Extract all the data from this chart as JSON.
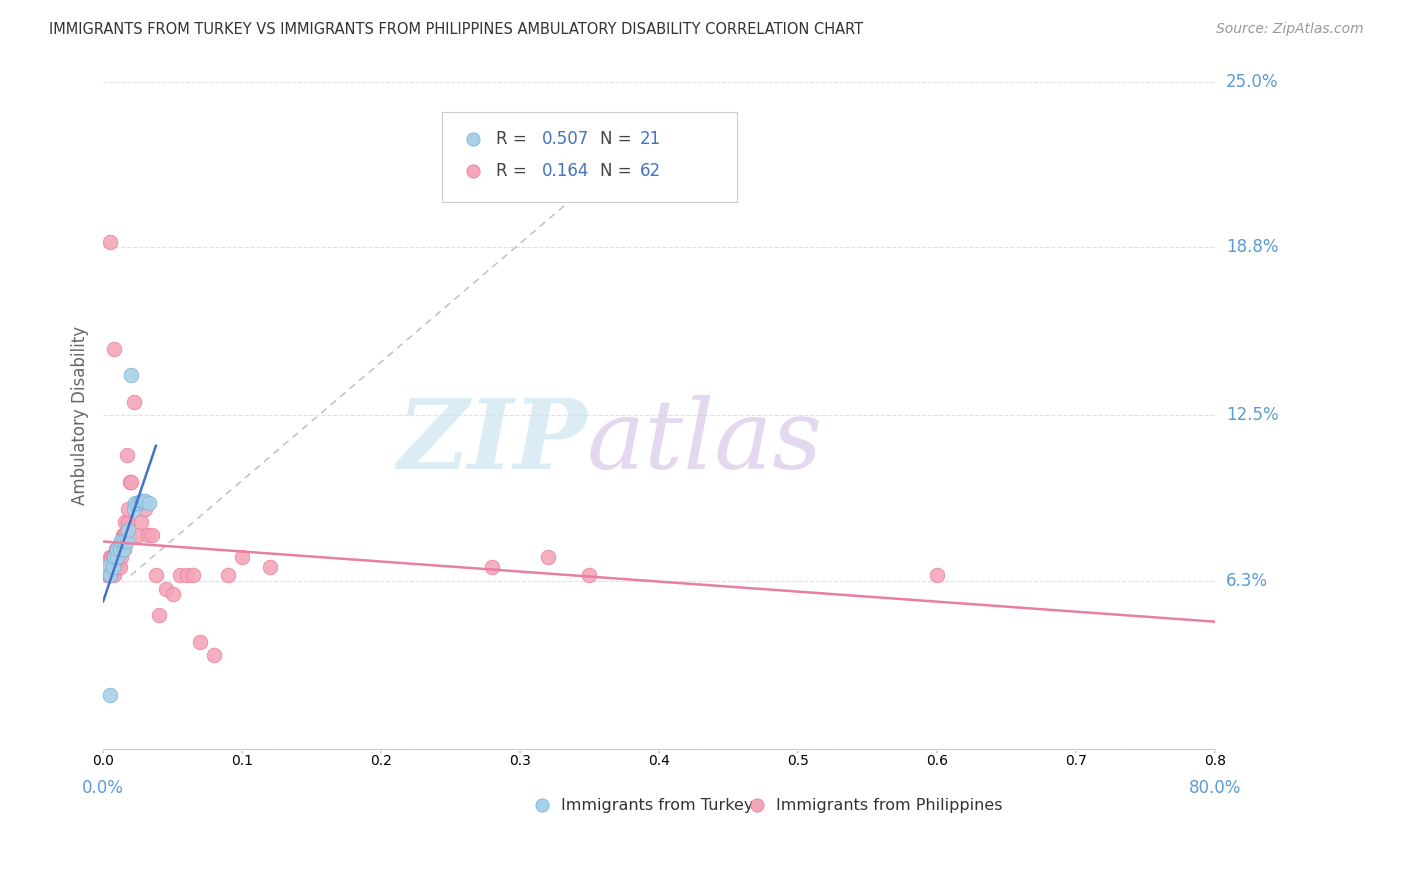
{
  "title": "IMMIGRANTS FROM TURKEY VS IMMIGRANTS FROM PHILIPPINES AMBULATORY DISABILITY CORRELATION CHART",
  "source": "Source: ZipAtlas.com",
  "ylabel": "Ambulatory Disability",
  "xlim": [
    0.0,
    0.8
  ],
  "ylim": [
    0.0,
    0.25
  ],
  "yticks": [
    0.0,
    0.063,
    0.125,
    0.188,
    0.25
  ],
  "ytick_labels": [
    "",
    "6.3%",
    "12.5%",
    "18.8%",
    "25.0%"
  ],
  "xtick_labels": [
    "0.0%",
    "80.0%"
  ],
  "xtick_pos": [
    0.0,
    0.8
  ],
  "turkey_color": "#a8d0e8",
  "turkey_edge": "#7ab5d8",
  "philippines_color": "#f4a6b8",
  "philippines_edge": "#e87f9e",
  "turkey_R": 0.507,
  "turkey_N": 21,
  "philippines_R": 0.164,
  "philippines_N": 62,
  "legend_color_R": "#4472c4",
  "legend_color_N": "#4472c4",
  "background_color": "#ffffff",
  "grid_color": "#e0e0e0",
  "tick_label_color": "#5b9bd5",
  "title_color": "#333333",
  "source_color": "#999999",
  "ylabel_color": "#666666",
  "watermark_zip_color": "#cde4f0",
  "watermark_atlas_color": "#d8c8e8",
  "turkey_trend_color": "#4472c4",
  "philippines_trend_color": "#e87f9e",
  "dash_line_color": "#bbbbbb",
  "turkey_scatter_x": [
    0.003,
    0.005,
    0.007,
    0.008,
    0.01,
    0.01,
    0.012,
    0.013,
    0.015,
    0.015,
    0.017,
    0.018,
    0.02,
    0.022,
    0.023,
    0.025,
    0.027,
    0.028,
    0.03,
    0.033,
    0.005
  ],
  "turkey_scatter_y": [
    0.068,
    0.065,
    0.068,
    0.072,
    0.072,
    0.075,
    0.075,
    0.078,
    0.075,
    0.078,
    0.078,
    0.082,
    0.14,
    0.09,
    0.092,
    0.092,
    0.093,
    0.093,
    0.093,
    0.092,
    0.02
  ],
  "philippines_scatter_x": [
    0.002,
    0.003,
    0.003,
    0.004,
    0.004,
    0.005,
    0.005,
    0.005,
    0.006,
    0.006,
    0.006,
    0.007,
    0.007,
    0.008,
    0.008,
    0.008,
    0.009,
    0.009,
    0.009,
    0.01,
    0.01,
    0.01,
    0.011,
    0.012,
    0.012,
    0.013,
    0.013,
    0.014,
    0.014,
    0.015,
    0.015,
    0.016,
    0.016,
    0.017,
    0.018,
    0.018,
    0.019,
    0.02,
    0.022,
    0.025,
    0.027,
    0.03,
    0.032,
    0.035,
    0.038,
    0.04,
    0.045,
    0.05,
    0.055,
    0.06,
    0.065,
    0.07,
    0.08,
    0.09,
    0.1,
    0.12,
    0.28,
    0.32,
    0.35,
    0.6,
    0.005,
    0.008
  ],
  "philippines_scatter_y": [
    0.068,
    0.065,
    0.068,
    0.065,
    0.068,
    0.065,
    0.068,
    0.072,
    0.065,
    0.068,
    0.072,
    0.068,
    0.072,
    0.065,
    0.068,
    0.072,
    0.068,
    0.072,
    0.075,
    0.068,
    0.072,
    0.075,
    0.072,
    0.068,
    0.075,
    0.072,
    0.078,
    0.075,
    0.08,
    0.075,
    0.08,
    0.08,
    0.085,
    0.11,
    0.085,
    0.09,
    0.1,
    0.1,
    0.13,
    0.08,
    0.085,
    0.09,
    0.08,
    0.08,
    0.065,
    0.05,
    0.06,
    0.058,
    0.065,
    0.065,
    0.065,
    0.04,
    0.035,
    0.065,
    0.072,
    0.068,
    0.068,
    0.072,
    0.065,
    0.065,
    0.19,
    0.15
  ]
}
